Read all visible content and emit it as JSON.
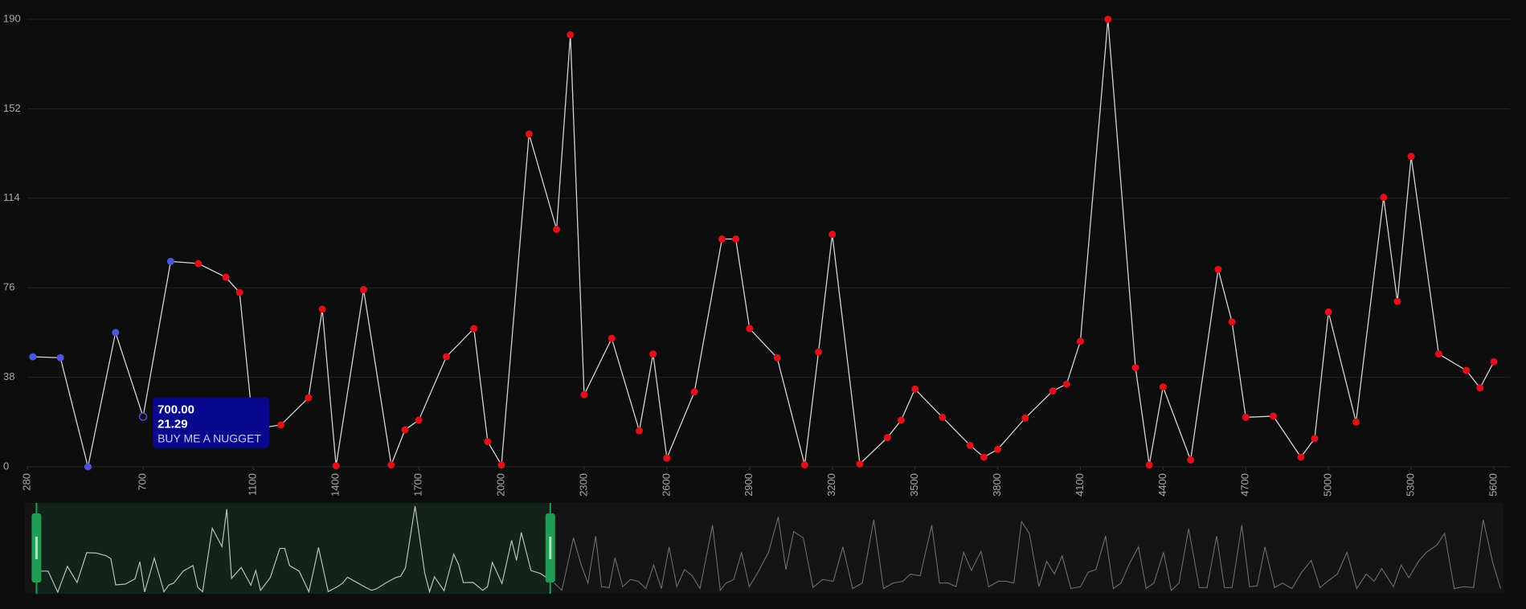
{
  "chart_data": {
    "type": "line",
    "xlim": [
      280,
      5600
    ],
    "ylim": [
      0,
      190
    ],
    "xticks": [
      280,
      700,
      1100,
      1400,
      1700,
      2000,
      2300,
      2600,
      2900,
      3200,
      3500,
      3800,
      4100,
      4400,
      4700,
      5000,
      5300,
      5600
    ],
    "yticks": [
      0,
      38,
      76,
      114,
      152,
      190
    ],
    "grid": true,
    "line_color": "#d4d4d4",
    "x": [
      300,
      400,
      500,
      600,
      700,
      800,
      900,
      1000,
      1050,
      1100,
      1200,
      1300,
      1350,
      1400,
      1500,
      1600,
      1650,
      1700,
      1800,
      1900,
      1950,
      2000,
      2100,
      2200,
      2250,
      2300,
      2400,
      2500,
      2550,
      2600,
      2700,
      2800,
      2850,
      2900,
      3000,
      3100,
      3150,
      3200,
      3300,
      3400,
      3450,
      3500,
      3600,
      3700,
      3750,
      3800,
      3900,
      4000,
      4050,
      4100,
      4200,
      4300,
      4350,
      4400,
      4500,
      4600,
      4650,
      4700,
      4800,
      4900,
      4950,
      5000,
      5100,
      5200,
      5250,
      5300,
      5400,
      5500,
      5550,
      5600
    ],
    "series": [
      {
        "values": [
          46.7,
          46.3,
          0,
          57,
          21.29,
          87.2,
          86.3,
          80.5,
          74,
          16,
          17.8,
          29.3,
          66.9,
          0.4,
          75.2,
          0.8,
          15.7,
          19.8,
          46.7,
          58.7,
          10.7,
          0.8,
          141.3,
          100.8,
          183.4,
          30.6,
          54.5,
          15.3,
          47.9,
          3.7,
          31.8,
          96.7,
          96.7,
          58.7,
          46.3,
          0.8,
          48.7,
          98.7,
          1.2,
          12.4,
          19.8,
          33,
          21,
          9.1,
          4.1,
          7.4,
          20.7,
          32.2,
          35.1,
          53.3,
          190,
          42.1,
          0.8,
          33.9,
          2.9,
          83.8,
          61.5,
          21,
          21.5,
          4.1,
          12,
          65.7,
          19,
          114.4,
          70.2,
          131.8,
          47.9,
          40.9,
          33.5,
          44.6
        ],
        "point_colors": [
          "#4a55e0",
          "#4a55e0",
          "#4a55e0",
          "#4a55e0",
          "#4a55e0",
          "#4a55e0",
          "#e0101a",
          "#e0101a",
          "#e0101a",
          "#e0101a",
          "#e0101a",
          "#e0101a",
          "#e0101a",
          "#e0101a",
          "#e0101a",
          "#e0101a",
          "#e0101a",
          "#e0101a",
          "#e0101a",
          "#e0101a",
          "#e0101a",
          "#e0101a",
          "#e0101a",
          "#e0101a",
          "#e0101a",
          "#e0101a",
          "#e0101a",
          "#e0101a",
          "#e0101a",
          "#e0101a",
          "#e0101a",
          "#e0101a",
          "#e0101a",
          "#e0101a",
          "#e0101a",
          "#e0101a",
          "#e0101a",
          "#e0101a",
          "#e0101a",
          "#e0101a",
          "#e0101a",
          "#e0101a",
          "#e0101a",
          "#e0101a",
          "#e0101a",
          "#e0101a",
          "#e0101a",
          "#e0101a",
          "#e0101a",
          "#e0101a",
          "#e0101a",
          "#e0101a",
          "#e0101a",
          "#e0101a",
          "#e0101a",
          "#e0101a",
          "#e0101a",
          "#e0101a",
          "#e0101a",
          "#e0101a",
          "#e0101a",
          "#e0101a",
          "#e0101a",
          "#e0101a",
          "#e0101a",
          "#e0101a",
          "#e0101a",
          "#e0101a",
          "#e0101a",
          "#e0101a"
        ]
      }
    ],
    "tooltip": {
      "x": {
        "value": 700,
        "label": "700.00"
      },
      "y": 21.29,
      "text": "BUY ME A NUGGET"
    },
    "navigator": {
      "xlim": [
        160,
        15470
      ],
      "x": [
        5640,
        5720,
        5840,
        5920,
        5990,
        6070,
        6130,
        6210,
        6270,
        6350,
        6430,
        6510,
        6590,
        6670,
        6750,
        6830,
        6910,
        6990,
        7070,
        7150,
        7280,
        7360,
        7420,
        7500,
        7580,
        7660,
        7740,
        7860,
        7960,
        8040,
        8120,
        8220,
        8320,
        8420,
        8530,
        8630,
        8730,
        8830,
        8950,
        9050,
        9150,
        9250,
        9330,
        9430,
        9550,
        9630,
        9720,
        9800,
        9880,
        9960,
        10060,
        10140,
        10240,
        10320,
        10400,
        10480,
        10560,
        10660,
        10740,
        10820,
        10900,
        10990,
        11090,
        11170,
        11250,
        11350,
        11430,
        11510,
        11590,
        11690,
        11770,
        11850,
        11950,
        12030,
        12110,
        12210,
        12320,
        12400,
        12500,
        12580,
        12660,
        12760,
        12840,
        12920,
        13000,
        13100,
        13180,
        13280,
        13380,
        13480,
        13570,
        13650,
        13750,
        13850,
        13950,
        14050,
        14130,
        14210,
        14330,
        14410,
        14490,
        14590,
        14670,
        14780,
        14860,
        14960,
        15060,
        15160,
        15260,
        15360,
        15440
      ],
      "values": [
        20,
        4,
        120,
        60,
        20,
        124,
        12,
        10,
        76,
        12,
        28,
        24,
        8,
        60,
        8,
        100,
        12,
        50,
        36,
        8,
        148,
        4,
        20,
        28,
        88,
        12,
        40,
        88,
        166,
        50,
        134,
        120,
        10,
        28,
        24,
        100,
        8,
        20,
        160,
        8,
        20,
        24,
        40,
        36,
        148,
        20,
        20,
        12,
        88,
        48,
        90,
        12,
        24,
        24,
        20,
        156,
        130,
        12,
        68,
        40,
        80,
        8,
        12,
        44,
        50,
        124,
        8,
        20,
        60,
        100,
        8,
        20,
        88,
        4,
        20,
        140,
        10,
        10,
        124,
        10,
        10,
        148,
        12,
        14,
        100,
        10,
        20,
        8,
        44,
        70,
        10,
        24,
        40,
        88,
        8,
        40,
        24,
        52,
        12,
        60,
        32,
        68,
        88,
        104,
        130,
        8,
        12,
        10,
        160,
        64,
        8
      ]
    }
  }
}
